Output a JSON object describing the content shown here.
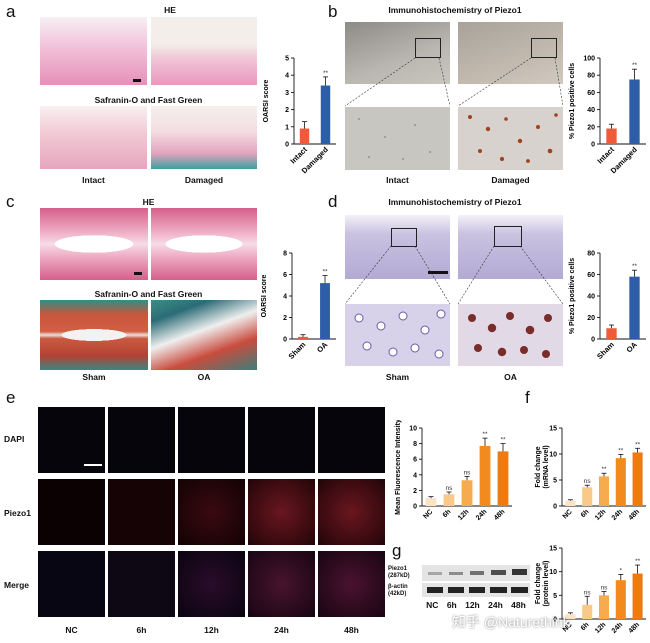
{
  "panels": {
    "a": {
      "letter": "a",
      "title_he": "HE",
      "title_saf": "Safranin-O and Fast Green",
      "cap_left": "Intact",
      "cap_right": "Damaged"
    },
    "b": {
      "letter": "b",
      "title": "Immunohistochemistry of Piezo1",
      "cap_left": "Intact",
      "cap_right": "Damaged"
    },
    "c": {
      "letter": "c",
      "title_he": "HE",
      "title_saf": "Safranin-O and Fast Green",
      "cap_left": "Sham",
      "cap_right": "OA"
    },
    "d": {
      "letter": "d",
      "title": "Immunohistochemistry of Piezo1",
      "cap_left": "Sham",
      "cap_right": "OA"
    },
    "e": {
      "letter": "e",
      "row_labels": [
        "DAPI",
        "Piezo1",
        "Merge"
      ],
      "col_labels": [
        "NC",
        "6h",
        "12h",
        "24h",
        "48h"
      ]
    },
    "f": {
      "letter": "f"
    },
    "g": {
      "letter": "g",
      "blot_labels": [
        "Piezo1\n(287kD)",
        "β-actin\n(42kD)"
      ],
      "lane_labels": [
        "NC",
        "6h",
        "12h",
        "24h",
        "48h"
      ]
    }
  },
  "watermark": "知乎 @Naturethink",
  "chart_data": [
    {
      "id": "a",
      "type": "bar",
      "categories": [
        "Intact",
        "Damaged"
      ],
      "values": [
        0.9,
        3.4
      ],
      "errors": [
        0.4,
        0.5
      ],
      "colors": [
        "#ee5a3a",
        "#2f5ea8"
      ],
      "ylabel": "OARSI score",
      "ylim": [
        0,
        5
      ],
      "yticks": [
        0,
        1,
        2,
        3,
        4,
        5
      ],
      "annotations": [
        "",
        "**"
      ]
    },
    {
      "id": "b",
      "type": "bar",
      "categories": [
        "Intact",
        "Damaged"
      ],
      "values": [
        18,
        75
      ],
      "errors": [
        5,
        12
      ],
      "colors": [
        "#ee5a3a",
        "#2f5ea8"
      ],
      "ylabel": "% Piezo1 positive cells",
      "ylim": [
        0,
        100
      ],
      "yticks": [
        0,
        20,
        40,
        60,
        80,
        100
      ],
      "annotations": [
        "",
        "**"
      ]
    },
    {
      "id": "c",
      "type": "bar",
      "categories": [
        "Sham",
        "OA"
      ],
      "values": [
        0.2,
        5.2
      ],
      "errors": [
        0.2,
        0.7
      ],
      "colors": [
        "#ee5a3a",
        "#2f5ea8"
      ],
      "ylabel": "OARSI score",
      "ylim": [
        0,
        8
      ],
      "yticks": [
        0,
        2,
        4,
        6,
        8
      ],
      "annotations": [
        "",
        "**"
      ]
    },
    {
      "id": "d",
      "type": "bar",
      "categories": [
        "Sham",
        "OA"
      ],
      "values": [
        10,
        58
      ],
      "errors": [
        3,
        6
      ],
      "colors": [
        "#ee5a3a",
        "#2f5ea8"
      ],
      "ylabel": "% Piezo1 positive cells",
      "ylim": [
        0,
        80
      ],
      "yticks": [
        0,
        20,
        40,
        60,
        80
      ],
      "annotations": [
        "",
        "**"
      ]
    },
    {
      "id": "e",
      "type": "bar",
      "categories": [
        "NC",
        "6h",
        "12h",
        "24h",
        "48h"
      ],
      "values": [
        1.0,
        1.5,
        3.3,
        7.7,
        7.0
      ],
      "errors": [
        0.2,
        0.3,
        0.5,
        1.0,
        1.0
      ],
      "colors": [
        "#fbe3c4",
        "#f9c98a",
        "#f6ab4e",
        "#f28a1e",
        "#ee7a10"
      ],
      "ylabel": "Mean Fluorescence Intensity",
      "ylim": [
        0,
        10
      ],
      "yticks": [
        0,
        2,
        4,
        6,
        8,
        10
      ],
      "annotations": [
        "",
        "ns",
        "ns",
        "**",
        "**"
      ]
    },
    {
      "id": "f",
      "type": "bar",
      "categories": [
        "NC",
        "6h",
        "12h",
        "24h",
        "48h"
      ],
      "values": [
        1.0,
        3.6,
        5.7,
        9.2,
        10.3
      ],
      "errors": [
        0.2,
        0.4,
        0.6,
        0.7,
        0.8
      ],
      "colors": [
        "#fbe3c4",
        "#f9c98a",
        "#f6ab4e",
        "#f28a1e",
        "#ee7a10"
      ],
      "ylabel": "Fold change (mRNA level)",
      "ylim": [
        0,
        15
      ],
      "yticks": [
        0,
        5,
        10,
        15
      ],
      "annotations": [
        "",
        "ns",
        "**",
        "**",
        "**"
      ]
    },
    {
      "id": "g",
      "type": "bar",
      "categories": [
        "NC",
        "6h",
        "12h",
        "24h",
        "48h"
      ],
      "values": [
        1.0,
        3.0,
        5.0,
        8.2,
        9.6
      ],
      "errors": [
        0.3,
        1.8,
        0.8,
        1.2,
        1.8
      ],
      "colors": [
        "#fbe3c4",
        "#f9c98a",
        "#f6ab4e",
        "#f28a1e",
        "#ee7a10"
      ],
      "ylabel": "Fold change (protein level)",
      "ylim": [
        0,
        15
      ],
      "yticks": [
        0,
        5,
        10,
        15
      ],
      "annotations": [
        "",
        "ns",
        "ns",
        "*",
        "**"
      ]
    }
  ]
}
